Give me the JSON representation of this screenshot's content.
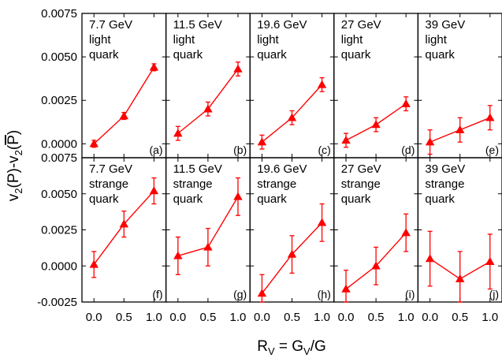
{
  "chart_data": {
    "type": "scatter",
    "xlabel": "R_V = G_V/G",
    "ylabel": "v_2(P)-v_2(P̄)",
    "x_ticks": [
      "0.0",
      "0.5",
      "1.0"
    ],
    "y_ticks_top": [
      "0.0000",
      "0.0025",
      "0.0050",
      "0.0075"
    ],
    "y_ticks_bottom": [
      "-0.0025",
      "0.0000",
      "0.0025",
      "0.0050",
      "0.0075"
    ],
    "xlim": [
      -0.2,
      1.2
    ],
    "ylim_top": [
      -0.0008,
      0.0075
    ],
    "ylim_bottom": [
      -0.0025,
      0.0075
    ],
    "series_color": "#ff0000",
    "marker": "triangle",
    "panels": [
      {
        "row": 0,
        "col": 0,
        "energy": "7.7 GeV",
        "line1": "light",
        "line2": "quark",
        "tag": "(a)",
        "x": [
          0.0,
          0.5,
          1.0
        ],
        "y": [
          0.0,
          0.0016,
          0.0044
        ],
        "err": [
          0.0002,
          0.0002,
          0.0002
        ]
      },
      {
        "row": 0,
        "col": 1,
        "energy": "11.5 GeV",
        "line1": "light",
        "line2": "quark",
        "tag": "(b)",
        "x": [
          0.0,
          0.5,
          1.0
        ],
        "y": [
          0.0006,
          0.002,
          0.0043
        ],
        "err": [
          0.0004,
          0.0004,
          0.0004
        ]
      },
      {
        "row": 0,
        "col": 2,
        "energy": "19.6 GeV",
        "line1": "light",
        "line2": "quark",
        "tag": "(c)",
        "x": [
          0.0,
          0.5,
          1.0
        ],
        "y": [
          0.0001,
          0.0015,
          0.0034
        ],
        "err": [
          0.0004,
          0.0004,
          0.0004
        ]
      },
      {
        "row": 0,
        "col": 3,
        "energy": "27 GeV",
        "line1": "light",
        "line2": "quark",
        "tag": "(d)",
        "x": [
          0.0,
          0.5,
          1.0
        ],
        "y": [
          0.0002,
          0.0011,
          0.0023
        ],
        "err": [
          0.0004,
          0.0004,
          0.0004
        ]
      },
      {
        "row": 0,
        "col": 4,
        "energy": "39 GeV",
        "line1": "light",
        "line2": "quark",
        "tag": "(e)",
        "x": [
          0.0,
          0.5,
          1.0
        ],
        "y": [
          0.0001,
          0.0008,
          0.0015
        ],
        "err": [
          0.0007,
          0.0007,
          0.0007
        ]
      },
      {
        "row": 1,
        "col": 0,
        "energy": "7.7 GeV",
        "line1": "strange",
        "line2": "quark",
        "tag": "(f)",
        "x": [
          0.0,
          0.5,
          1.0
        ],
        "y": [
          0.0001,
          0.0029,
          0.0052
        ],
        "err": [
          0.0009,
          0.0009,
          0.0009
        ]
      },
      {
        "row": 1,
        "col": 1,
        "energy": "11.5 GeV",
        "line1": "strange",
        "line2": "quark",
        "tag": "(g)",
        "x": [
          0.0,
          0.5,
          1.0
        ],
        "y": [
          0.0007,
          0.0013,
          0.0048
        ],
        "err": [
          0.0013,
          0.0013,
          0.0013
        ]
      },
      {
        "row": 1,
        "col": 2,
        "energy": "19.6 GeV",
        "line1": "strange",
        "line2": "quark",
        "tag": "(h)",
        "x": [
          0.0,
          0.5,
          1.0
        ],
        "y": [
          -0.0019,
          0.0008,
          0.003
        ],
        "err": [
          0.0013,
          0.0013,
          0.0013
        ]
      },
      {
        "row": 1,
        "col": 3,
        "energy": "27 GeV",
        "line1": "strange",
        "line2": "quark",
        "tag": "(i)",
        "x": [
          0.0,
          0.5,
          1.0
        ],
        "y": [
          -0.0016,
          0.0,
          0.0023
        ],
        "err": [
          0.0013,
          0.0013,
          0.0013
        ]
      },
      {
        "row": 1,
        "col": 4,
        "energy": "39 GeV",
        "line1": "strange",
        "line2": "quark",
        "tag": "(j)",
        "x": [
          0.0,
          0.5,
          1.0
        ],
        "y": [
          0.0005,
          -0.0009,
          0.0003
        ],
        "err": [
          0.0019,
          0.0019,
          0.0019
        ]
      }
    ]
  }
}
